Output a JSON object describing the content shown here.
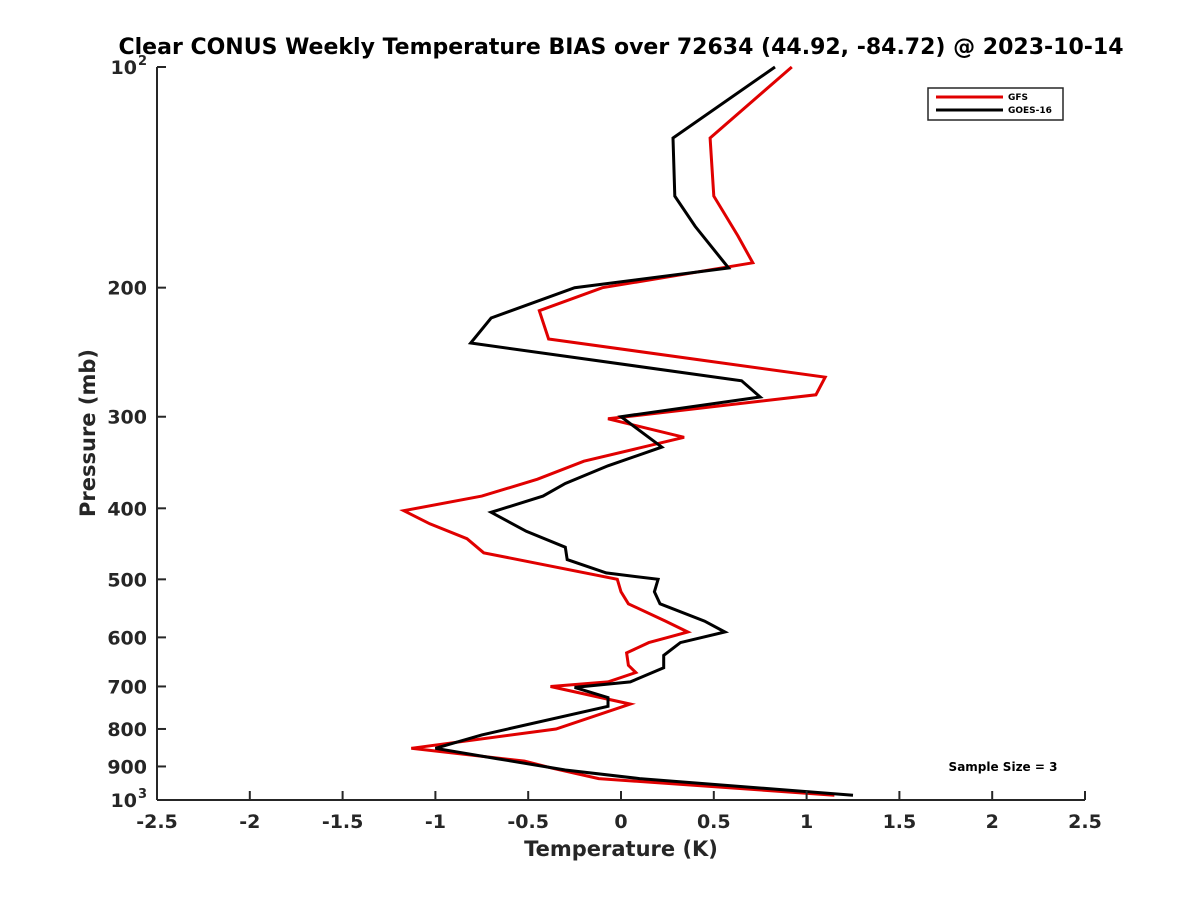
{
  "chart_data": {
    "type": "line",
    "title": "Clear CONUS Weekly Temperature BIAS over 72634 (44.92, -84.72) @ 2023-10-14",
    "xlabel": "Temperature (K)",
    "ylabel": "Pressure (mb)",
    "xlim": [
      -2.5,
      2.5
    ],
    "ylim": [
      100,
      1000
    ],
    "y_scale": "log",
    "y_reversed": true,
    "x_ticks": [
      "-2.5",
      "-2",
      "-1.5",
      "-1",
      "-0.5",
      "0",
      "0.5",
      "1",
      "1.5",
      "2",
      "2.5"
    ],
    "y_ticks": [
      {
        "value": 100,
        "base": "10",
        "exp": "2"
      },
      {
        "value": 200,
        "label": "200"
      },
      {
        "value": 300,
        "label": "300"
      },
      {
        "value": 400,
        "label": "400"
      },
      {
        "value": 500,
        "label": "500"
      },
      {
        "value": 600,
        "label": "600"
      },
      {
        "value": 700,
        "label": "700"
      },
      {
        "value": 800,
        "label": "800"
      },
      {
        "value": 900,
        "label": "900"
      },
      {
        "value": 1000,
        "base": "10",
        "exp": "3"
      }
    ],
    "grid": false,
    "legend_position": "top-right",
    "series": [
      {
        "name": "GFS",
        "color": "#e00000",
        "points": [
          [
            0.92,
            100
          ],
          [
            0.48,
            125
          ],
          [
            0.5,
            150
          ],
          [
            0.63,
            170
          ],
          [
            0.71,
            185
          ],
          [
            -0.1,
            200
          ],
          [
            -0.44,
            215
          ],
          [
            -0.39,
            235
          ],
          [
            1.1,
            265
          ],
          [
            1.05,
            280
          ],
          [
            -0.07,
            302
          ],
          [
            0.34,
            320
          ],
          [
            -0.2,
            345
          ],
          [
            -0.45,
            365
          ],
          [
            -0.75,
            385
          ],
          [
            -1.17,
            403
          ],
          [
            -1.03,
            420
          ],
          [
            -0.83,
            440
          ],
          [
            -0.74,
            460
          ],
          [
            -0.02,
            500
          ],
          [
            0.0,
            520
          ],
          [
            0.04,
            540
          ],
          [
            0.24,
            570
          ],
          [
            0.36,
            590
          ],
          [
            0.15,
            610
          ],
          [
            0.03,
            630
          ],
          [
            0.04,
            655
          ],
          [
            0.08,
            670
          ],
          [
            -0.07,
            690
          ],
          [
            -0.38,
            700
          ],
          [
            0.05,
            740
          ],
          [
            -0.35,
            800
          ],
          [
            -1.13,
            850
          ],
          [
            -0.52,
            885
          ],
          [
            -0.37,
            905
          ],
          [
            -0.12,
            935
          ],
          [
            1.15,
            985
          ]
        ]
      },
      {
        "name": "GOES-16",
        "color": "#000000",
        "points": [
          [
            0.83,
            100
          ],
          [
            0.28,
            125
          ],
          [
            0.29,
            150
          ],
          [
            0.4,
            165
          ],
          [
            0.58,
            188
          ],
          [
            -0.25,
            200
          ],
          [
            -0.7,
            220
          ],
          [
            -0.81,
            238
          ],
          [
            0.65,
            268
          ],
          [
            0.75,
            282
          ],
          [
            0.0,
            300
          ],
          [
            0.22,
            330
          ],
          [
            -0.07,
            350
          ],
          [
            -0.3,
            370
          ],
          [
            -0.42,
            385
          ],
          [
            -0.7,
            405
          ],
          [
            -0.51,
            430
          ],
          [
            -0.3,
            452
          ],
          [
            -0.29,
            470
          ],
          [
            -0.08,
            490
          ],
          [
            0.2,
            500
          ],
          [
            0.18,
            520
          ],
          [
            0.21,
            540
          ],
          [
            0.45,
            570
          ],
          [
            0.56,
            590
          ],
          [
            0.32,
            610
          ],
          [
            0.23,
            635
          ],
          [
            0.23,
            660
          ],
          [
            0.05,
            690
          ],
          [
            -0.25,
            702
          ],
          [
            -0.07,
            725
          ],
          [
            -0.07,
            745
          ],
          [
            -0.75,
            815
          ],
          [
            -1.0,
            850
          ],
          [
            -0.67,
            878
          ],
          [
            -0.3,
            910
          ],
          [
            0.1,
            935
          ],
          [
            1.25,
            985
          ]
        ]
      }
    ],
    "annotations": [
      {
        "text": "Sample Size = 3"
      }
    ]
  }
}
